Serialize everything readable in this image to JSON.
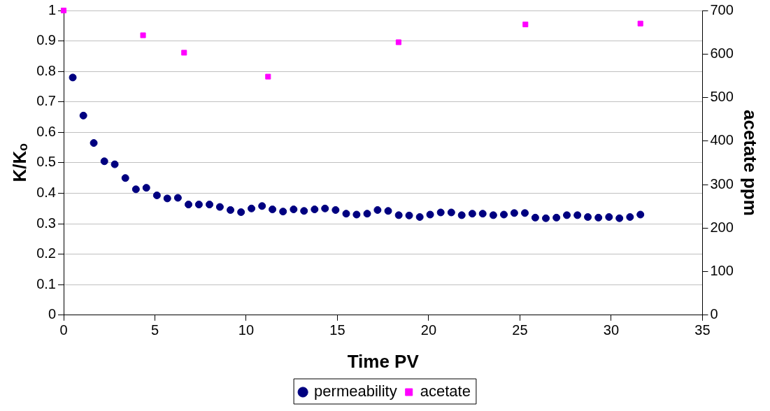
{
  "chart_data": {
    "type": "scatter",
    "xlabel": "Time PV",
    "ylabel": "K/Kₒ",
    "y2label": "acetate ppm",
    "xlim": [
      0,
      35
    ],
    "xticks": [
      0,
      5,
      10,
      15,
      20,
      25,
      30,
      35
    ],
    "ylim": [
      0,
      1
    ],
    "yticks": [
      0,
      0.1,
      0.2,
      0.3,
      0.4,
      0.5,
      0.6,
      0.7,
      0.8,
      0.9,
      1
    ],
    "y2lim": [
      0,
      700
    ],
    "y2ticks": [
      0,
      100,
      200,
      300,
      400,
      500,
      600,
      700
    ],
    "grid": "y",
    "legend": "bottom",
    "series": [
      {
        "name": "permeability",
        "color": "#000080",
        "marker": "circle",
        "x": [
          0.5,
          1.08,
          1.65,
          2.23,
          2.8,
          3.38,
          3.96,
          4.53,
          5.11,
          5.68,
          6.26,
          6.84,
          7.41,
          7.99,
          8.56,
          9.14,
          9.72,
          10.29,
          10.87,
          11.44,
          12.02,
          12.6,
          13.17,
          13.75,
          14.32,
          14.9,
          15.48,
          16.05,
          16.63,
          17.2,
          17.78,
          18.36,
          18.93,
          19.51,
          20.08,
          20.66,
          21.24,
          21.81,
          22.39,
          22.96,
          23.54,
          24.12,
          24.69,
          25.27,
          25.84,
          26.42,
          27.0,
          27.57,
          28.15,
          28.72,
          29.3,
          29.88,
          30.45,
          31.03,
          31.6
        ],
        "values": [
          0.78,
          0.655,
          0.565,
          0.505,
          0.495,
          0.45,
          0.413,
          0.418,
          0.393,
          0.383,
          0.385,
          0.363,
          0.363,
          0.363,
          0.355,
          0.345,
          0.338,
          0.35,
          0.358,
          0.347,
          0.34,
          0.347,
          0.342,
          0.347,
          0.35,
          0.345,
          0.333,
          0.33,
          0.333,
          0.345,
          0.342,
          0.328,
          0.327,
          0.322,
          0.33,
          0.337,
          0.337,
          0.328,
          0.333,
          0.333,
          0.328,
          0.33,
          0.335,
          0.335,
          0.32,
          0.318,
          0.32,
          0.328,
          0.328,
          0.322,
          0.32,
          0.322,
          0.318,
          0.322,
          0.33
        ]
      },
      {
        "name": "acetate",
        "color": "#ff00ff",
        "marker": "square",
        "axis": "y2",
        "x": [
          0,
          4.35,
          6.6,
          11.2,
          18.35,
          25.3,
          31.6
        ],
        "values": [
          700,
          643,
          603,
          548,
          627,
          668,
          670
        ]
      }
    ]
  }
}
